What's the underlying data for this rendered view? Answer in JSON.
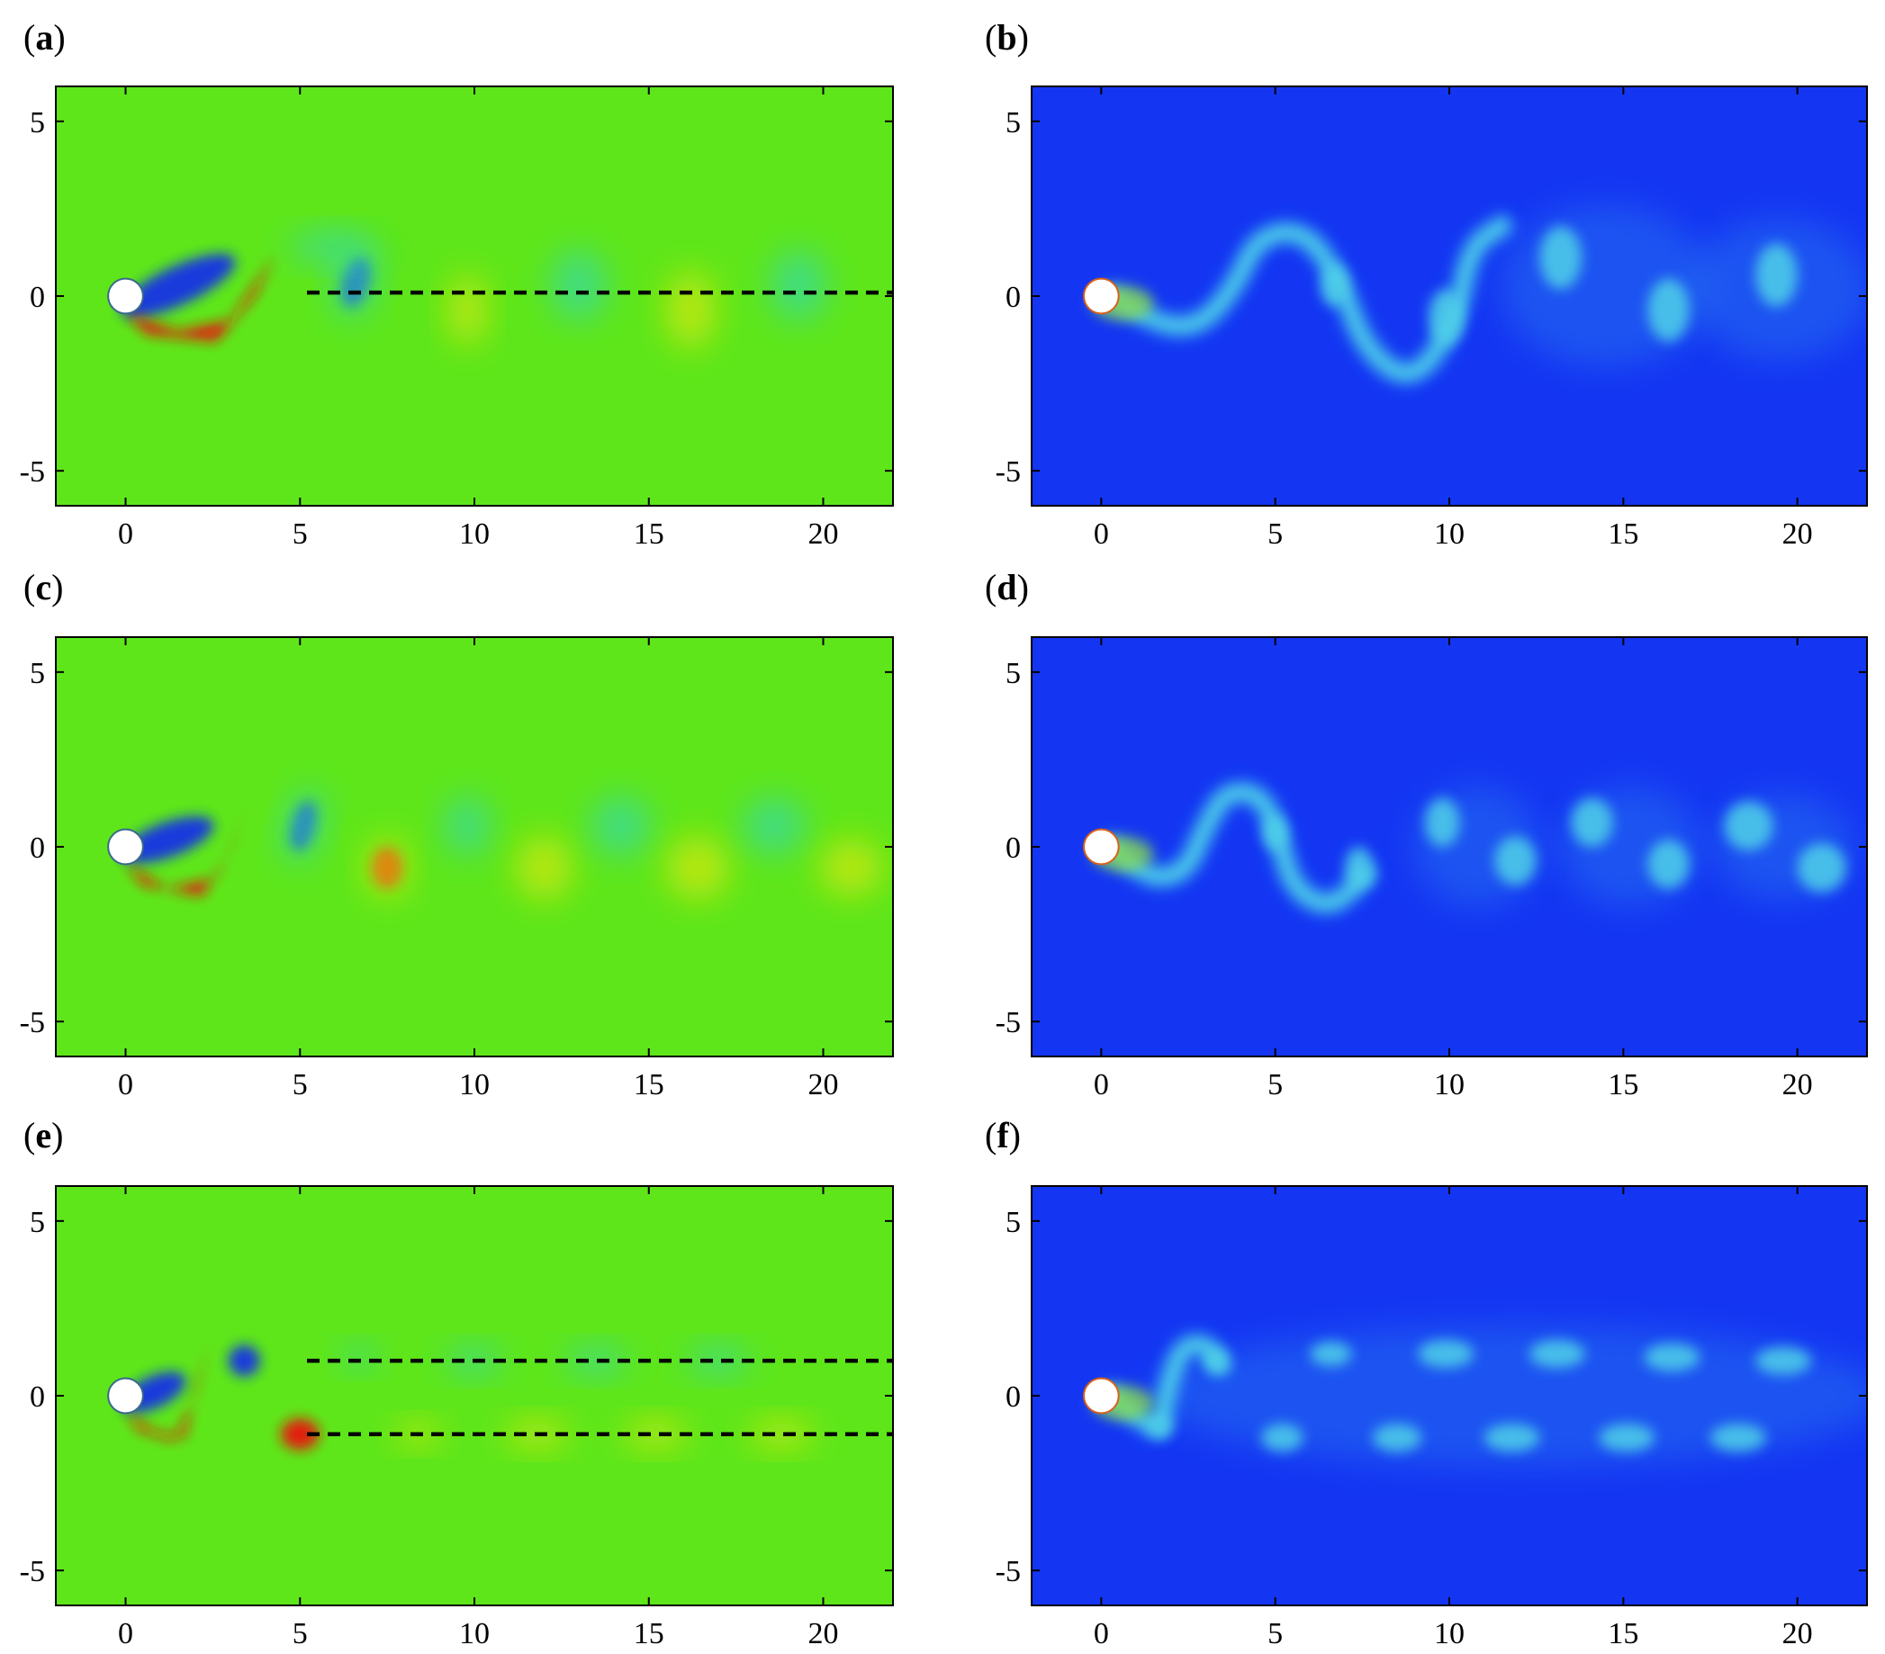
{
  "colors": {
    "vorticity_background": "#5ee61a",
    "vorticity_negative": "#1230e6",
    "vorticity_positive": "#e8160f",
    "vorticity_weak_negative": "#39d9a6",
    "vorticity_weak_positive": "#d8e810",
    "concentration_background": "#1436f2",
    "concentration_high": "#4fd1e8",
    "concentration_mid": "#2f8cf0",
    "cylinder": "#ffffff",
    "dashed_line": "#000000"
  },
  "panels": [
    {
      "id": "a",
      "label_open": "(",
      "label_letter": "a",
      "label_close": ")",
      "field": "vorticity",
      "xticks": [
        "0",
        "5",
        "10",
        "15",
        "20"
      ],
      "yticks": [
        "5",
        "0",
        "-5"
      ],
      "dashed_lines_y": [
        0.1
      ]
    },
    {
      "id": "b",
      "label_open": "(",
      "label_letter": "b",
      "label_close": ")",
      "field": "concentration",
      "xticks": [
        "0",
        "5",
        "10",
        "15",
        "20"
      ],
      "yticks": [
        "5",
        "0",
        "-5"
      ],
      "dashed_lines_y": []
    },
    {
      "id": "c",
      "label_open": "(",
      "label_letter": "c",
      "label_close": ")",
      "field": "vorticity",
      "xticks": [
        "0",
        "5",
        "10",
        "15",
        "20"
      ],
      "yticks": [
        "5",
        "0",
        "-5"
      ],
      "dashed_lines_y": []
    },
    {
      "id": "d",
      "label_open": "(",
      "label_letter": "d",
      "label_close": ")",
      "field": "concentration",
      "xticks": [
        "0",
        "5",
        "10",
        "15",
        "20"
      ],
      "yticks": [
        "5",
        "0",
        "-5"
      ],
      "dashed_lines_y": []
    },
    {
      "id": "e",
      "label_open": "(",
      "label_letter": "e",
      "label_close": ")",
      "field": "vorticity",
      "xticks": [
        "0",
        "5",
        "10",
        "15",
        "20"
      ],
      "yticks": [
        "5",
        "0",
        "-5"
      ],
      "dashed_lines_y": [
        1.0,
        -1.1
      ]
    },
    {
      "id": "f",
      "label_open": "(",
      "label_letter": "f",
      "label_close": ")",
      "field": "concentration",
      "xticks": [
        "0",
        "5",
        "10",
        "15",
        "20"
      ],
      "yticks": [
        "5",
        "0",
        "-5"
      ],
      "dashed_lines_y": []
    }
  ],
  "axes": {
    "xlim": [
      -2,
      22
    ],
    "ylim": [
      -6,
      6
    ],
    "xtick_values": [
      0,
      5,
      10,
      15,
      20
    ],
    "ytick_values": [
      5,
      0,
      -5
    ]
  }
}
